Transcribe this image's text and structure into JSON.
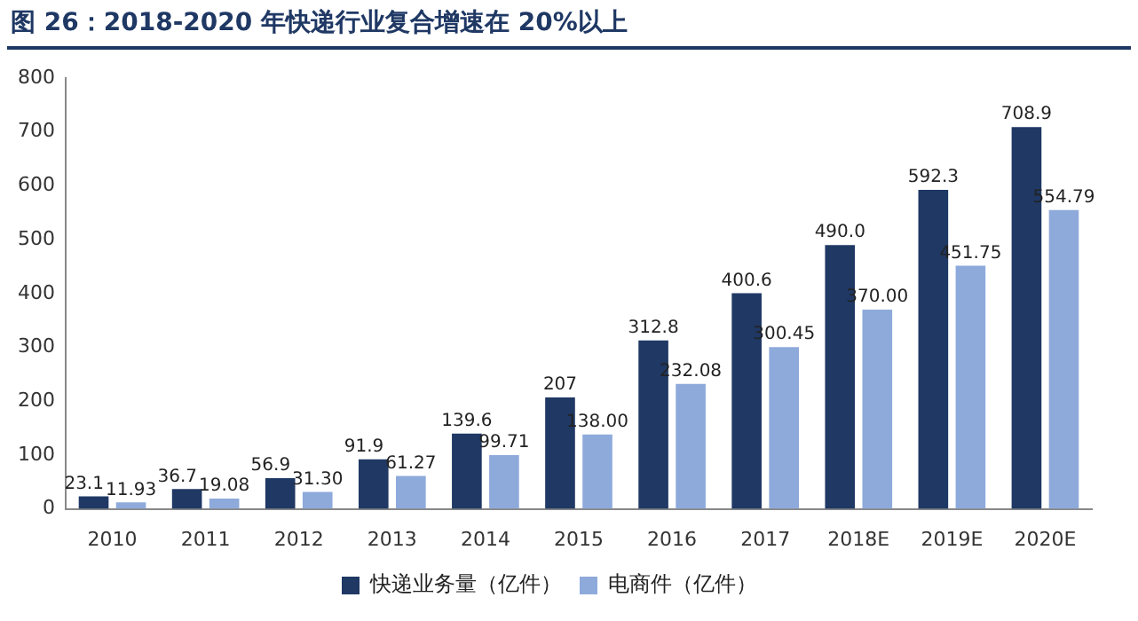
{
  "chart_data": {
    "type": "bar",
    "title": "图 26：2018-2020 年快递行业复合增速在 20%以上",
    "categories": [
      "2010",
      "2011",
      "2012",
      "2013",
      "2014",
      "2015",
      "2016",
      "2017",
      "2018E",
      "2019E",
      "2020E"
    ],
    "series": [
      {
        "name": "快递业务量（亿件）",
        "color": "#1f3864",
        "values": [
          23.1,
          36.7,
          56.9,
          91.9,
          139.6,
          207,
          312.8,
          400.6,
          490.0,
          592.3,
          708.9
        ],
        "value_labels": [
          "23.1",
          "36.7",
          "56.9",
          "91.9",
          "139.6",
          "207",
          "312.8",
          "400.6",
          "490.0",
          "592.3",
          "708.9"
        ]
      },
      {
        "name": "电商件（亿件）",
        "color": "#8eaadb",
        "values": [
          11.93,
          19.08,
          31.3,
          61.27,
          99.71,
          138.0,
          232.08,
          300.45,
          370.0,
          451.75,
          554.79
        ],
        "value_labels": [
          "11.93",
          "19.08",
          "31.30",
          "61.27",
          "99.71",
          "138.00",
          "232.08",
          "300.45",
          "370.00",
          "451.75",
          "554.79"
        ]
      }
    ],
    "ylim": [
      0,
      800
    ],
    "yticks": [
      0,
      100,
      200,
      300,
      400,
      500,
      600,
      700,
      800
    ],
    "grid": false,
    "legend": "bottom"
  }
}
